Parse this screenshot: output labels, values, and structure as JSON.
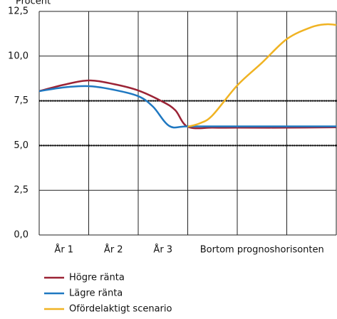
{
  "chart_data": {
    "type": "line",
    "y_label": "Procent",
    "xlim": [
      0,
      6
    ],
    "ylim": [
      0,
      12.5
    ],
    "xticks": [
      {
        "value": 0.5,
        "label": "År 1"
      },
      {
        "value": 1.5,
        "label": "År 2"
      },
      {
        "value": 2.5,
        "label": "År 3"
      },
      {
        "value": 4.5,
        "label": "Bortom prognoshorisonten"
      }
    ],
    "x_gridlines": [
      0,
      1,
      2,
      3,
      4,
      5,
      6
    ],
    "yticks": [
      {
        "value": 0,
        "label": "0,0"
      },
      {
        "value": 2.5,
        "label": "2,5"
      },
      {
        "value": 5,
        "label": "5,0"
      },
      {
        "value": 7.5,
        "label": "7,5"
      },
      {
        "value": 10,
        "label": "10,0"
      },
      {
        "value": 12.5,
        "label": "12,5"
      }
    ],
    "reference_lines": [
      5,
      7.5
    ],
    "grid": true,
    "series": [
      {
        "name": "Högre ränta",
        "color": "#9b2335",
        "x": [
          0,
          0.5,
          1,
          1.5,
          2,
          2.5,
          2.75,
          3,
          3.5,
          4,
          5,
          6
        ],
        "values": [
          8.04,
          8.4,
          8.64,
          8.44,
          8.08,
          7.44,
          6.97,
          6.05,
          6.0,
          6.0,
          6.0,
          6.02
        ]
      },
      {
        "name": "Lägre ränta",
        "color": "#1f78c1",
        "x": [
          0,
          0.5,
          1,
          1.5,
          2,
          2.3,
          2.63,
          3,
          4,
          5,
          6
        ],
        "values": [
          8.04,
          8.25,
          8.32,
          8.12,
          7.76,
          7.17,
          6.09,
          6.07,
          6.07,
          6.07,
          6.07
        ]
      },
      {
        "name": "Ofördelaktigt scenario",
        "color": "#f0b323",
        "x": [
          3,
          3.25,
          3.5,
          4,
          4.5,
          5,
          5.5,
          5.8,
          6
        ],
        "values": [
          6.05,
          6.25,
          6.69,
          8.36,
          9.63,
          10.95,
          11.62,
          11.78,
          11.74
        ]
      }
    ]
  }
}
